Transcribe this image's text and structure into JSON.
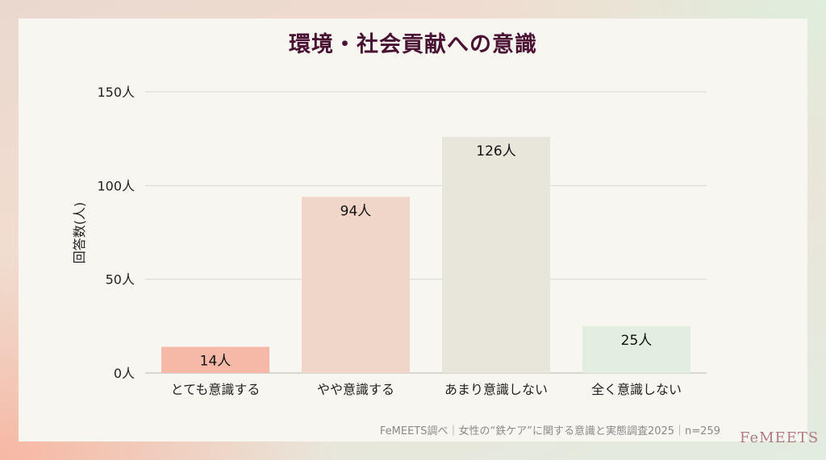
{
  "chart_data": {
    "type": "bar",
    "title": "環境・社会貢献への意識",
    "ylabel": "回答数(人)",
    "xlabel": "",
    "ylim": [
      0,
      150
    ],
    "yticks": [
      0,
      50,
      100,
      150
    ],
    "ytick_labels": [
      "0人",
      "50人",
      "100人",
      "150人"
    ],
    "grid": true,
    "categories": [
      "とても意識する",
      "やや意識する",
      "あまり意識しない",
      "全く意識しない"
    ],
    "values": [
      14,
      94,
      126,
      25
    ],
    "value_labels": [
      "14人",
      "94人",
      "126人",
      "25人"
    ],
    "colors": [
      "#f7b9a7",
      "#f0d6c8",
      "#e8e6da",
      "#e3eee0"
    ]
  },
  "footer": {
    "source": "FeMEETS調べ｜女性の“鉄ケア”に関する意識と実態調査2025｜n=259"
  },
  "logo": {
    "text": "FeMEETS"
  }
}
